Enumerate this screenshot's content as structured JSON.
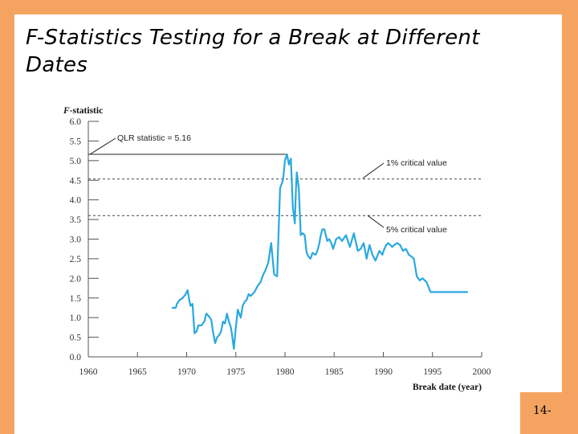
{
  "slide": {
    "title": "F-Statistics Testing for a Break at Different Dates",
    "page_number": "14-"
  },
  "colors": {
    "frame": "#F4A460",
    "series": "#29A8E0",
    "axis": "#555555"
  },
  "chart_data": {
    "type": "line",
    "ylabel_prefix": "F",
    "ylabel_suffix": "-statistic",
    "xlabel": "Break date (year)",
    "xlim": [
      1960,
      2000
    ],
    "ylim": [
      0,
      6
    ],
    "xticks": [
      "1960",
      "1965",
      "1970",
      "1975",
      "1980",
      "1985",
      "1990",
      "1995",
      "2000"
    ],
    "yticks": [
      "0.0",
      "0.5",
      "1.0",
      "1.5",
      "2.0",
      "2.5",
      "3.0",
      "3.5",
      "4.0",
      "4.5",
      "5.0",
      "5.5",
      "6.0"
    ],
    "grid": false,
    "series": [
      {
        "x": [
          1968.5,
          1968.9,
          1969.0,
          1969.3,
          1969.6,
          1969.9,
          1970.1,
          1970.3,
          1970.4,
          1970.6,
          1970.8,
          1971.0,
          1971.2,
          1971.5,
          1971.8,
          1972.0,
          1972.2,
          1972.5,
          1972.7,
          1972.9,
          1973.1,
          1973.3,
          1973.5,
          1973.7,
          1973.9,
          1974.1,
          1974.3,
          1974.5,
          1974.6,
          1974.8,
          1975.0,
          1975.2,
          1975.5,
          1975.7,
          1975.9,
          1976.1,
          1976.3,
          1976.5,
          1976.7,
          1976.9,
          1977.2,
          1977.5,
          1977.8,
          1978.0,
          1978.3,
          1978.6,
          1978.9,
          1979.2,
          1979.5,
          1979.8,
          1980.0,
          1980.2,
          1980.4,
          1980.6,
          1980.8,
          1981.0,
          1981.1,
          1981.2,
          1981.4,
          1981.6,
          1981.8,
          1982.0,
          1982.2,
          1982.4,
          1982.6,
          1982.8,
          1983.1,
          1983.3,
          1983.5,
          1983.6,
          1983.8,
          1984.0,
          1984.3,
          1984.5,
          1984.7,
          1984.9,
          1985.2,
          1985.5,
          1985.8,
          1986.2,
          1986.6,
          1987.0,
          1987.4,
          1987.7,
          1988.0,
          1988.3,
          1988.6,
          1988.9,
          1989.2,
          1989.6,
          1989.9,
          1990.1,
          1990.3,
          1990.5,
          1990.7,
          1990.9,
          1991.1,
          1991.4,
          1991.7,
          1992.0,
          1992.3,
          1992.6,
          1992.9,
          1993.1,
          1993.4,
          1993.7,
          1994.0,
          1994.4,
          1994.8,
          1995.2,
          1995.6,
          1996.0,
          1996.3,
          1996.6,
          1996.9,
          1997.2,
          1997.4,
          1997.6,
          1997.8,
          1998.0,
          1998.2,
          1998.4,
          1998.6
        ],
        "y": [
          1.25,
          1.25,
          1.35,
          1.45,
          1.5,
          1.6,
          1.7,
          1.4,
          1.3,
          1.35,
          0.6,
          0.65,
          0.8,
          0.8,
          0.9,
          1.1,
          1.05,
          0.95,
          0.6,
          0.35,
          0.5,
          0.55,
          0.65,
          0.9,
          0.85,
          1.1,
          0.9,
          0.75,
          0.6,
          0.2,
          0.75,
          1.2,
          1.0,
          1.3,
          1.4,
          1.45,
          1.6,
          1.55,
          1.6,
          1.65,
          1.8,
          1.9,
          2.1,
          2.2,
          2.4,
          2.9,
          2.1,
          2.05,
          4.3,
          4.5,
          5.0,
          5.16,
          4.9,
          5.05,
          3.8,
          3.4,
          4.2,
          4.7,
          4.3,
          3.1,
          3.15,
          3.1,
          2.65,
          2.55,
          2.5,
          2.65,
          2.6,
          2.7,
          2.9,
          3.05,
          3.25,
          3.25,
          2.95,
          3.0,
          2.9,
          2.75,
          3.0,
          3.05,
          2.95,
          3.1,
          2.8,
          3.15,
          2.7,
          2.75,
          2.9,
          2.5,
          2.85,
          2.6,
          2.45,
          2.7,
          2.6,
          2.75,
          2.85,
          2.9,
          2.85,
          2.8,
          2.85,
          2.9,
          2.85,
          2.7,
          2.75,
          2.6,
          2.55,
          2.5,
          2.05,
          1.95,
          2.0,
          1.9,
          1.65,
          1.65,
          1.65,
          1.65,
          1.65,
          1.65,
          1.65,
          1.65,
          1.65,
          1.65,
          1.65,
          1.65,
          1.65,
          1.65,
          1.65
        ]
      }
    ],
    "reference_lines": [
      {
        "label": "QLR statistic = 5.16",
        "value": 5.16,
        "style": "solid"
      },
      {
        "label": "1% critical value",
        "value": 4.53,
        "style": "dashed"
      },
      {
        "label": "5% critical value",
        "value": 3.6,
        "style": "dashed"
      }
    ]
  }
}
